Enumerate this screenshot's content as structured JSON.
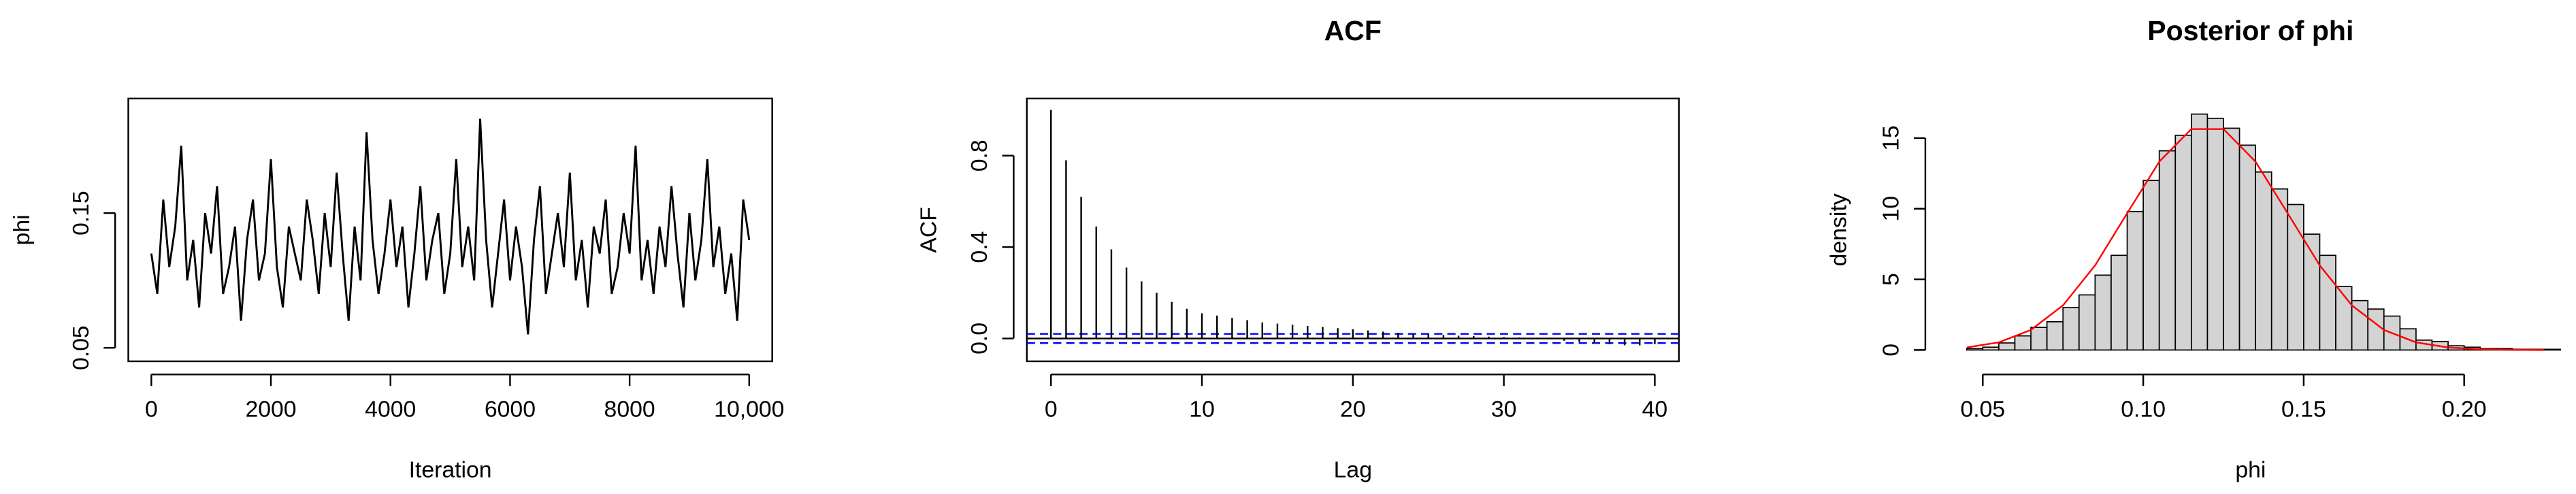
{
  "chart_data": [
    {
      "type": "line",
      "xlabel": "Iteration",
      "ylabel": "phi",
      "color": "#000000",
      "x": [
        0,
        100,
        200,
        300,
        400,
        500,
        600,
        700,
        800,
        900,
        1000,
        1100,
        1200,
        1300,
        1400,
        1500,
        1600,
        1700,
        1800,
        1900,
        2000,
        2100,
        2200,
        2300,
        2400,
        2500,
        2600,
        2700,
        2800,
        2900,
        3000,
        3100,
        3200,
        3300,
        3400,
        3500,
        3600,
        3700,
        3800,
        3900,
        4000,
        4100,
        4200,
        4300,
        4400,
        4500,
        4600,
        4700,
        4800,
        4900,
        5000,
        5100,
        5200,
        5300,
        5400,
        5500,
        5600,
        5700,
        5800,
        5900,
        6000,
        6100,
        6200,
        6300,
        6400,
        6500,
        6600,
        6700,
        6800,
        6900,
        7000,
        7100,
        7200,
        7300,
        7400,
        7500,
        7600,
        7700,
        7800,
        7900,
        8000,
        8100,
        8200,
        8300,
        8400,
        8500,
        8600,
        8700,
        8800,
        8900,
        9000,
        9100,
        9200,
        9300,
        9400,
        9500,
        9600,
        9700,
        9800,
        9900,
        10000
      ],
      "values": [
        0.12,
        0.09,
        0.16,
        0.11,
        0.14,
        0.2,
        0.1,
        0.13,
        0.08,
        0.15,
        0.12,
        0.17,
        0.09,
        0.11,
        0.14,
        0.07,
        0.13,
        0.16,
        0.1,
        0.12,
        0.19,
        0.11,
        0.08,
        0.14,
        0.12,
        0.1,
        0.16,
        0.13,
        0.09,
        0.15,
        0.11,
        0.18,
        0.12,
        0.07,
        0.14,
        0.1,
        0.21,
        0.13,
        0.09,
        0.12,
        0.16,
        0.11,
        0.14,
        0.08,
        0.12,
        0.17,
        0.1,
        0.13,
        0.15,
        0.09,
        0.12,
        0.19,
        0.11,
        0.14,
        0.1,
        0.22,
        0.13,
        0.08,
        0.12,
        0.16,
        0.1,
        0.14,
        0.11,
        0.06,
        0.13,
        0.17,
        0.09,
        0.12,
        0.15,
        0.11,
        0.18,
        0.1,
        0.13,
        0.08,
        0.14,
        0.12,
        0.16,
        0.09,
        0.11,
        0.15,
        0.12,
        0.2,
        0.1,
        0.13,
        0.09,
        0.14,
        0.11,
        0.17,
        0.12,
        0.08,
        0.15,
        0.1,
        0.13,
        0.19,
        0.11,
        0.14,
        0.09,
        0.12,
        0.07,
        0.16,
        0.13
      ],
      "xlim": [
        -385,
        10385
      ],
      "xticks": [
        0,
        2000,
        4000,
        6000,
        8000,
        {
          "value": 10000,
          "label": "10,000"
        }
      ],
      "ylim": [
        0.04,
        0.235
      ],
      "yticks": [
        0.05,
        0.15
      ]
    },
    {
      "type": "stem",
      "title": "ACF",
      "xlabel": "Lag",
      "ylabel": "ACF",
      "color": "#000000",
      "x": [
        0,
        1,
        2,
        3,
        4,
        5,
        6,
        7,
        8,
        9,
        10,
        11,
        12,
        13,
        14,
        15,
        16,
        17,
        18,
        19,
        20,
        21,
        22,
        23,
        24,
        25,
        26,
        27,
        28,
        29,
        30,
        31,
        32,
        33,
        34,
        35,
        36,
        37,
        38,
        39,
        40
      ],
      "values": [
        1,
        0.78,
        0.62,
        0.49,
        0.39,
        0.31,
        0.25,
        0.2,
        0.16,
        0.13,
        0.11,
        0.1,
        0.09,
        0.08,
        0.07,
        0.065,
        0.06,
        0.055,
        0.05,
        0.045,
        0.04,
        0.035,
        0.03,
        0.025,
        0.02,
        0.018,
        0.015,
        0.012,
        0.01,
        0.008,
        0.006,
        0.004,
        0.002,
        0,
        -0.01,
        -0.015,
        -0.02,
        -0.025,
        -0.03,
        -0.03,
        -0.025
      ],
      "ci": [
        -0.02,
        0.02
      ],
      "ci_color": "#0000ff",
      "xlim": [
        -1.6,
        41.6
      ],
      "xticks": [
        0,
        10,
        20,
        30,
        40
      ],
      "ylim": [
        -0.1,
        1.05
      ],
      "yticks": [
        {
          "value": 0,
          "label": "0.0"
        },
        0.4,
        0.8
      ]
    },
    {
      "type": "histogram",
      "title": "Posterior of phi",
      "xlabel": "phi",
      "ylabel": "density",
      "color": "#d3d3d3",
      "bins": [
        0.045,
        0.05,
        0.055,
        0.06,
        0.065,
        0.07,
        0.075,
        0.08,
        0.085,
        0.09,
        0.095,
        0.1,
        0.105,
        0.11,
        0.115,
        0.12,
        0.125,
        0.13,
        0.135,
        0.14,
        0.145,
        0.15,
        0.155,
        0.16,
        0.165,
        0.17,
        0.175,
        0.18,
        0.185,
        0.19,
        0.195,
        0.2,
        0.205,
        0.21,
        0.215,
        0.22,
        0.225,
        0.23
      ],
      "values": [
        0.1,
        0.2,
        0.5,
        1.0,
        1.6,
        2.0,
        3.0,
        3.9,
        5.3,
        6.7,
        9.8,
        12.0,
        14.1,
        15.2,
        16.7,
        16.4,
        15.7,
        14.5,
        12.6,
        11.4,
        10.3,
        8.2,
        6.7,
        4.5,
        3.5,
        2.9,
        2.4,
        1.5,
        0.7,
        0.6,
        0.3,
        0.2,
        0.1,
        0.1,
        0.05,
        0.05,
        0.05
      ],
      "overlay": {
        "color": "#ff0000",
        "x": [
          0.045,
          0.055,
          0.065,
          0.075,
          0.085,
          0.095,
          0.105,
          0.115,
          0.125,
          0.135,
          0.145,
          0.155,
          0.165,
          0.175,
          0.185,
          0.195,
          0.205,
          0.215,
          0.225
        ],
        "values": [
          0.18,
          0.54,
          1.42,
          3.16,
          5.99,
          9.68,
          13.33,
          15.64,
          15.64,
          13.33,
          9.68,
          5.99,
          3.16,
          1.42,
          0.54,
          0.18,
          0.05,
          0.01,
          0.0
        ]
      },
      "xlim": [
        0.0362,
        0.2307
      ],
      "xticks": [
        0.05,
        {
          "value": 0.1,
          "label": "0.10"
        },
        0.15,
        {
          "value": 0.2,
          "label": "0.20"
        }
      ],
      "ylim": [
        -0.8,
        17.8
      ],
      "yticks": [
        0,
        5,
        10,
        15
      ]
    }
  ]
}
